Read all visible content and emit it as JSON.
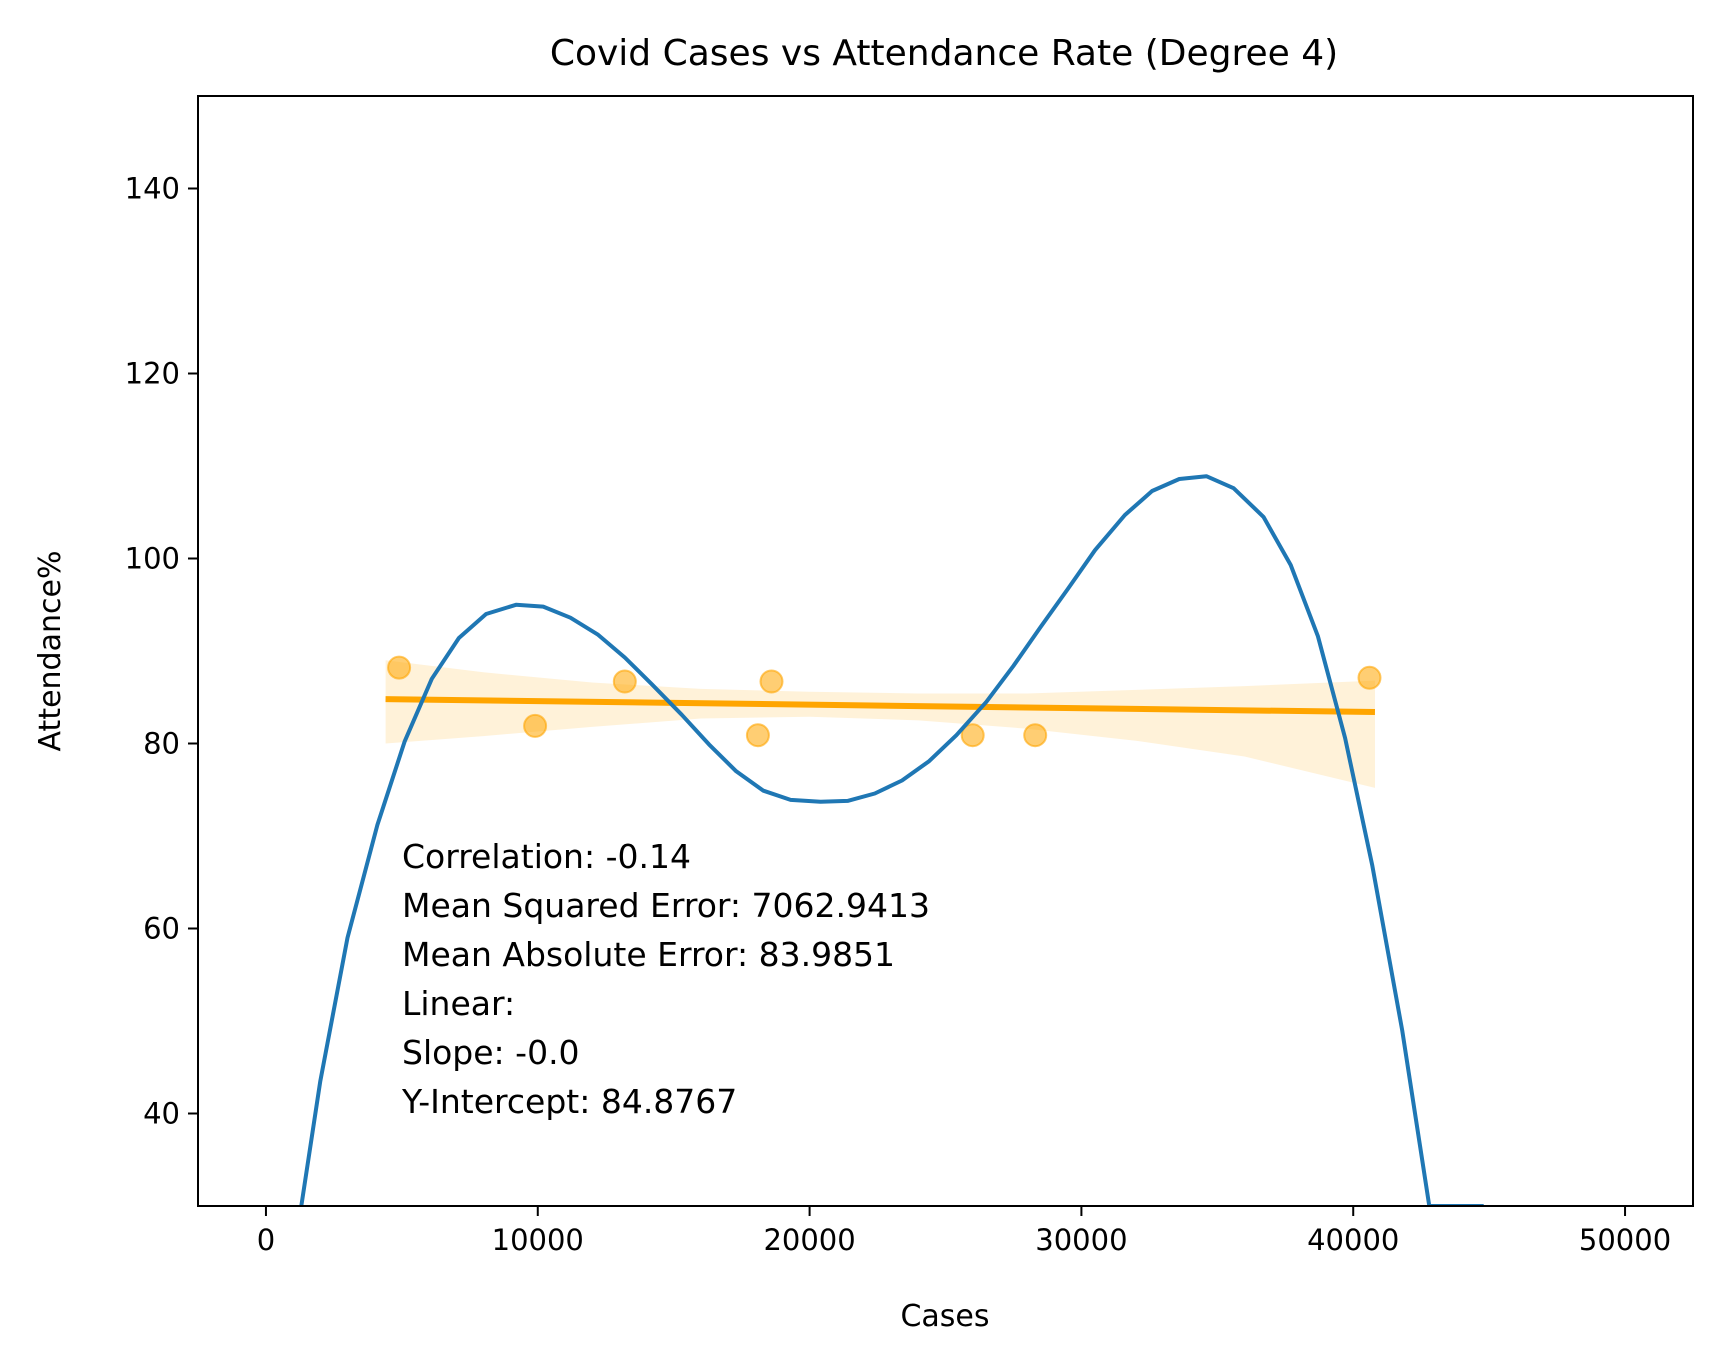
{
  "chart_data": {
    "type": "scatter",
    "title": "Covid Cases vs Attendance Rate (Degree 4)",
    "xlabel": "Cases",
    "ylabel": "Attendance%",
    "xlim": [
      -2500,
      52500
    ],
    "ylim": [
      30,
      150
    ],
    "xticks": [
      0,
      10000,
      20000,
      30000,
      40000,
      50000
    ],
    "xtick_labels": [
      "0",
      "10000",
      "20000",
      "30000",
      "40000",
      "50000"
    ],
    "yticks": [
      40,
      60,
      80,
      100,
      120,
      140
    ],
    "ytick_labels": [
      "40",
      "60",
      "80",
      "100",
      "120",
      "140"
    ],
    "grid": false,
    "series": [
      {
        "kind": "scatter",
        "color": "#ffa500",
        "points": [
          [
            4900,
            88.2
          ],
          [
            9900,
            81.9
          ],
          [
            13200,
            86.7
          ],
          [
            18100,
            80.9
          ],
          [
            18600,
            86.7
          ],
          [
            26000,
            80.9
          ],
          [
            28300,
            80.9
          ],
          [
            40600,
            87.1
          ]
        ]
      },
      {
        "kind": "regression-line",
        "color": "#ffa500",
        "x": [
          4400,
          40800
        ],
        "y": [
          84.8,
          83.4
        ]
      },
      {
        "kind": "confidence-band",
        "color": "#ffa500",
        "x": [
          4400,
          8000,
          12000,
          16000,
          20000,
          24000,
          28000,
          32000,
          36000,
          40800
        ],
        "upper": [
          89.0,
          87.7,
          86.6,
          85.9,
          85.6,
          85.4,
          85.4,
          85.8,
          86.2,
          86.8
        ],
        "lower": [
          80.0,
          80.8,
          81.8,
          82.7,
          82.9,
          82.5,
          81.6,
          80.3,
          78.6,
          75.2
        ]
      },
      {
        "kind": "polynomial-fit",
        "color": "#1f77b4",
        "x": [
          1300,
          2000,
          3000,
          4100,
          5100,
          6100,
          7100,
          8100,
          9200,
          10200,
          11200,
          12200,
          13200,
          14200,
          15300,
          16300,
          17300,
          18300,
          19300,
          20400,
          21400,
          22400,
          23400,
          24400,
          25400,
          26500,
          27500,
          28500,
          29500,
          30500,
          31600,
          32600,
          33600,
          34600,
          35600,
          36700,
          37700,
          38700,
          39700,
          40700,
          41800,
          42800,
          43800,
          44800
        ],
        "y": [
          30.0,
          43.5,
          59.0,
          71.2,
          80.2,
          87.0,
          91.4,
          94.0,
          95.0,
          94.8,
          93.6,
          91.8,
          89.3,
          86.4,
          83.1,
          79.9,
          77.0,
          74.9,
          73.9,
          73.7,
          73.8,
          74.6,
          76.0,
          78.1,
          80.9,
          84.5,
          88.4,
          92.6,
          96.7,
          100.9,
          104.7,
          107.3,
          108.6,
          108.9,
          107.6,
          104.5,
          99.3,
          91.6,
          80.6,
          66.8,
          49.0,
          30.0,
          30.0,
          30.0
        ]
      }
    ],
    "annotation_lines": [
      "Correlation: -0.14",
      "Mean Squared Error: 7062.9413",
      "Mean Absolute Error: 83.9851",
      "Linear:",
      "Slope: -0.0",
      "Y-Intercept: 84.8767"
    ]
  }
}
